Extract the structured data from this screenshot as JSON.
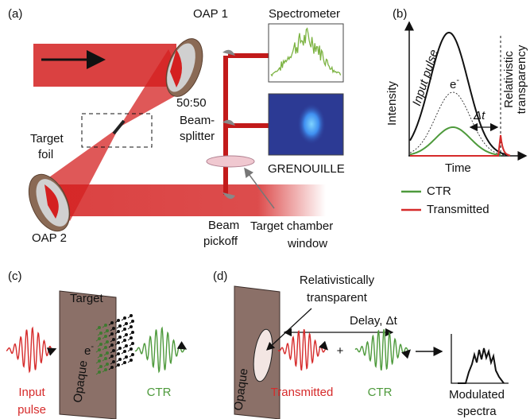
{
  "panel_a": {
    "label": "(a)",
    "oap1": "OAP 1",
    "oap2": "OAP 2",
    "spectrometer": "Spectrometer",
    "splitter": [
      "50:50",
      "Beam-",
      "splitter"
    ],
    "target_foil": [
      "Target",
      "foil"
    ],
    "grenouille": "GRENOUILLE",
    "pickoff": [
      "Beam",
      "pickoff"
    ],
    "window": [
      "Target chamber",
      "window"
    ]
  },
  "panel_b": {
    "label": "(b)",
    "input_pulse": "Input pulse",
    "electron": {
      "base": "e",
      "sup": "-"
    },
    "y_axis": "Intensity",
    "x_axis": "Time",
    "delay": "Δt",
    "transparency": [
      "Relativistic",
      "transparency"
    ],
    "legend": [
      {
        "name": "CTR",
        "color": "#4e9a3c"
      },
      {
        "name": "Transmitted",
        "color": "#d62b2b"
      }
    ]
  },
  "panel_c": {
    "label": "(c)",
    "target": "Target",
    "opaque": "Opaque",
    "electron": {
      "base": "e",
      "sup": "-"
    },
    "input": [
      "Input",
      "pulse"
    ],
    "ctr": "CTR"
  },
  "panel_d": {
    "label": "(d)",
    "transparent": [
      "Relativistically",
      "transparent"
    ],
    "delay": "Delay, Δt",
    "opaque": "Opaque",
    "transmitted": "Transmitted",
    "plus": "+",
    "ctr": "CTR",
    "spectra": [
      "Modulated",
      "spectra"
    ]
  }
}
